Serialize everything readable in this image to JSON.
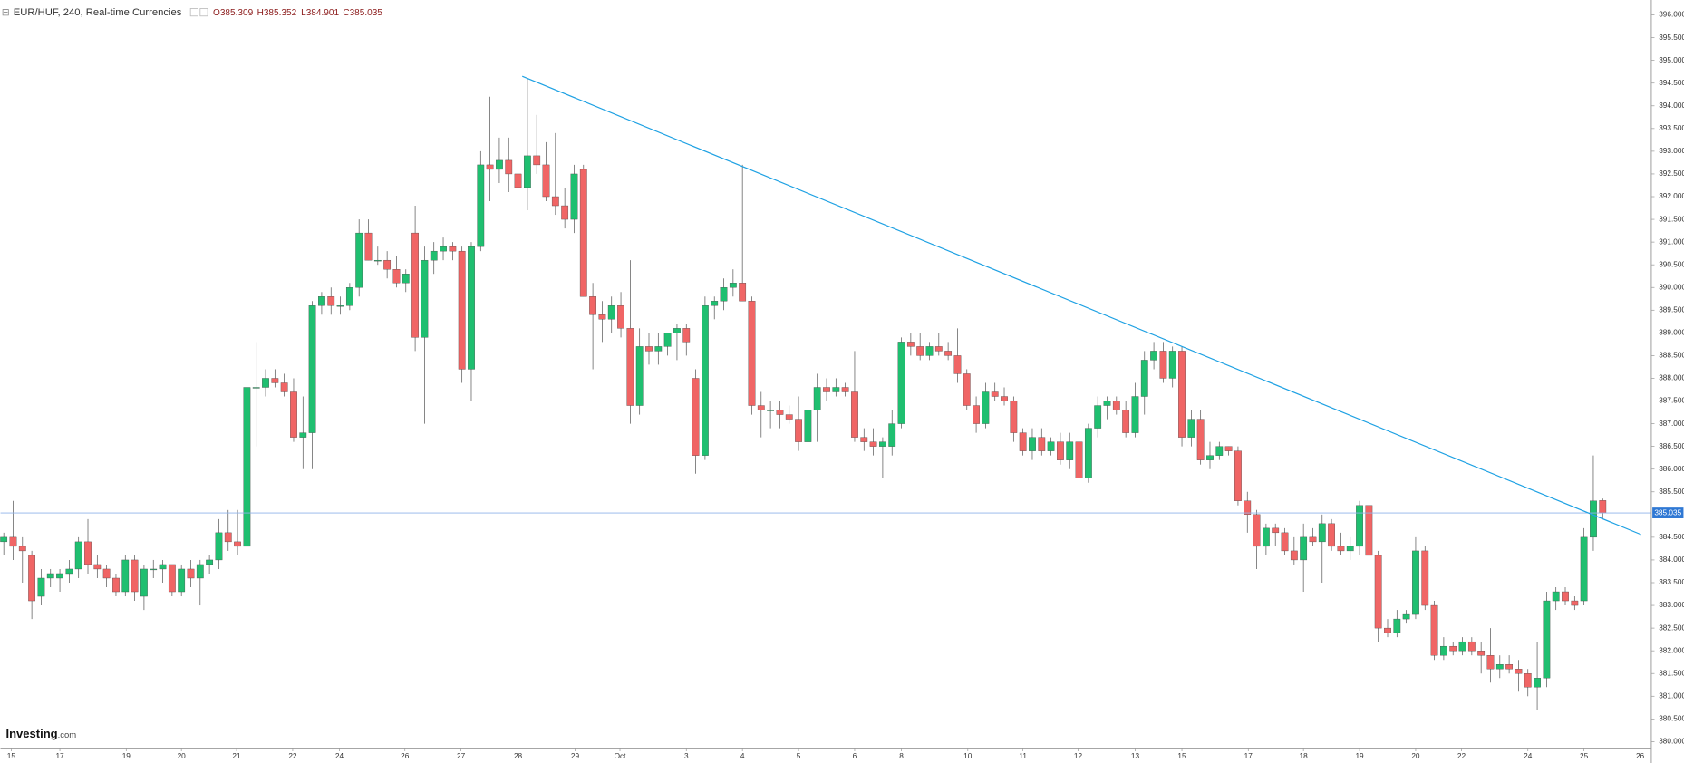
{
  "chart_data": {
    "type": "candlestick",
    "title": "EUR/HUF, 240, Real-time Currencies",
    "ohlc_labels": [
      "O385.309",
      "H385.352",
      "L384.901",
      "C385.035"
    ],
    "brand": "Investing",
    "brand_suffix": ".com",
    "up_color": "#1fbf70",
    "down_color": "#f06565",
    "open": [
      384.4,
      384.5,
      384.3,
      384.1,
      383.2,
      383.6,
      383.6,
      383.7,
      383.8,
      384.4,
      383.9,
      383.8,
      383.6,
      383.3,
      384.0,
      383.2,
      383.8,
      383.8,
      383.9,
      383.3,
      383.8,
      383.6,
      383.9,
      384.0,
      384.6,
      384.4,
      384.3,
      387.8,
      387.8,
      388.0,
      387.9,
      387.7,
      386.7,
      386.8,
      389.6,
      389.8,
      389.6,
      389.6,
      390.0,
      391.2,
      390.6,
      390.6,
      390.4,
      390.1,
      391.2,
      388.9,
      390.6,
      390.8,
      390.9,
      390.8,
      388.2,
      390.9,
      392.7,
      392.6,
      392.8,
      392.5,
      392.2,
      392.9,
      392.7,
      392.0,
      391.8,
      391.5,
      392.6,
      389.8,
      389.4,
      389.3,
      389.6,
      389.1,
      387.4,
      388.7,
      388.6,
      388.7,
      389.0,
      389.1,
      388.0,
      386.3,
      389.6,
      389.7,
      390.0,
      390.1,
      389.7,
      387.4,
      387.3,
      387.3,
      387.2,
      387.1,
      386.6,
      387.3,
      387.8,
      387.7,
      387.8,
      387.7,
      386.7,
      386.6,
      386.5,
      386.5,
      387.0,
      388.8,
      388.7,
      388.5,
      388.7,
      388.6,
      388.5,
      388.1,
      387.4,
      387.0,
      387.7,
      387.6,
      387.5,
      386.8,
      386.4,
      386.7,
      386.4,
      386.6,
      386.2,
      386.6,
      385.8,
      386.9,
      387.4,
      387.5,
      387.3,
      386.8,
      387.6,
      388.4,
      388.6,
      388.0,
      388.6,
      386.7,
      387.1,
      386.2,
      386.3,
      386.5,
      386.4,
      385.3,
      385.0,
      384.3,
      384.7,
      384.6,
      384.2,
      384.0,
      384.5,
      384.4,
      384.8,
      384.3,
      384.2,
      384.3,
      385.2,
      384.1,
      382.5,
      382.4,
      382.7,
      382.8,
      384.2,
      383.0,
      381.9,
      382.1,
      382.0,
      382.2,
      382.0,
      381.9,
      381.6,
      381.7,
      381.6,
      381.5,
      381.2,
      381.4,
      383.1,
      383.3,
      383.1,
      383.1,
      384.5,
      385.309
    ],
    "high": [
      384.6,
      385.3,
      384.5,
      384.2,
      383.8,
      383.8,
      383.8,
      384.0,
      384.5,
      384.9,
      384.1,
      383.9,
      383.7,
      384.1,
      384.1,
      383.9,
      384.0,
      384.0,
      383.9,
      383.9,
      384.0,
      384.0,
      384.1,
      384.9,
      385.1,
      385.1,
      388.0,
      388.8,
      388.2,
      388.2,
      388.1,
      388.0,
      387.6,
      389.7,
      389.9,
      390.0,
      389.8,
      390.1,
      391.5,
      391.5,
      390.9,
      390.8,
      390.7,
      390.4,
      391.8,
      390.9,
      391.0,
      391.1,
      391.0,
      390.9,
      391.0,
      393.0,
      394.2,
      393.3,
      393.3,
      393.5,
      394.6,
      393.8,
      393.2,
      393.4,
      392.2,
      392.7,
      392.7,
      390.1,
      389.7,
      389.8,
      389.9,
      390.6,
      389.1,
      389.0,
      389.0,
      389.0,
      389.2,
      389.2,
      388.2,
      389.8,
      389.8,
      390.2,
      390.4,
      392.7,
      389.8,
      387.7,
      387.5,
      387.5,
      387.4,
      387.6,
      387.7,
      388.1,
      388.0,
      388.0,
      387.9,
      388.6,
      386.9,
      386.9,
      386.7,
      387.3,
      388.9,
      389.0,
      389.0,
      388.8,
      389.0,
      388.8,
      389.1,
      388.2,
      387.6,
      387.9,
      387.9,
      387.8,
      387.6,
      386.9,
      386.9,
      386.9,
      386.7,
      386.8,
      386.8,
      386.8,
      387.0,
      387.6,
      387.6,
      387.6,
      387.5,
      387.9,
      388.6,
      388.8,
      388.8,
      388.7,
      388.7,
      387.3,
      387.3,
      386.6,
      386.6,
      386.5,
      386.5,
      385.5,
      385.1,
      384.8,
      384.8,
      384.7,
      384.5,
      384.8,
      384.7,
      385.0,
      384.9,
      384.6,
      384.5,
      385.3,
      385.3,
      384.2,
      382.7,
      382.9,
      382.9,
      384.5,
      384.3,
      383.1,
      382.3,
      382.2,
      382.3,
      382.3,
      382.2,
      382.5,
      381.9,
      381.9,
      381.8,
      381.6,
      382.2,
      383.3,
      383.4,
      383.4,
      383.2,
      384.7,
      386.3,
      385.352
    ],
    "low": [
      384.1,
      384.0,
      383.5,
      382.7,
      383.0,
      383.4,
      383.3,
      383.5,
      383.6,
      383.7,
      383.6,
      383.4,
      383.2,
      383.2,
      383.1,
      382.9,
      383.6,
      383.5,
      383.2,
      383.2,
      383.4,
      383.0,
      383.7,
      383.8,
      384.2,
      384.1,
      384.2,
      386.5,
      387.6,
      387.8,
      387.6,
      386.6,
      386.0,
      386.0,
      389.4,
      389.4,
      389.4,
      389.5,
      389.8,
      390.6,
      390.5,
      390.2,
      390.0,
      389.9,
      388.6,
      387.0,
      390.3,
      390.6,
      390.6,
      387.9,
      387.5,
      390.8,
      391.9,
      392.3,
      392.1,
      391.6,
      391.7,
      392.5,
      391.9,
      391.6,
      391.3,
      391.2,
      389.8,
      388.2,
      388.8,
      389.0,
      388.9,
      387.0,
      387.2,
      388.3,
      388.3,
      388.5,
      388.4,
      388.5,
      385.9,
      386.2,
      389.3,
      389.5,
      389.8,
      389.7,
      387.2,
      386.7,
      386.9,
      386.9,
      387.0,
      386.4,
      386.2,
      386.6,
      387.5,
      387.6,
      387.6,
      386.6,
      386.4,
      386.3,
      385.8,
      386.3,
      386.9,
      388.5,
      388.4,
      388.4,
      388.5,
      388.4,
      387.9,
      387.3,
      386.8,
      386.9,
      387.5,
      387.4,
      386.6,
      386.3,
      386.2,
      386.3,
      386.3,
      386.1,
      386.0,
      385.7,
      385.7,
      386.7,
      387.1,
      387.2,
      386.7,
      386.7,
      387.2,
      388.2,
      387.9,
      387.8,
      386.5,
      386.5,
      386.1,
      386.0,
      386.2,
      386.3,
      385.2,
      384.6,
      383.8,
      384.1,
      384.3,
      384.1,
      383.9,
      383.3,
      384.3,
      383.5,
      384.2,
      384.1,
      384.0,
      384.1,
      384.0,
      382.2,
      382.3,
      382.3,
      382.6,
      382.7,
      382.9,
      381.8,
      381.8,
      381.9,
      381.9,
      381.9,
      381.5,
      381.3,
      381.4,
      381.5,
      381.1,
      381.0,
      380.7,
      381.2,
      382.9,
      383.0,
      382.9,
      383.0,
      384.2,
      384.901
    ],
    "close": [
      384.5,
      384.3,
      384.2,
      383.1,
      383.6,
      383.7,
      383.7,
      383.8,
      384.4,
      383.9,
      383.8,
      383.6,
      383.3,
      384.0,
      383.3,
      383.8,
      383.8,
      383.9,
      383.3,
      383.8,
      383.6,
      383.9,
      384.0,
      384.6,
      384.4,
      384.3,
      387.8,
      387.8,
      388.0,
      387.9,
      387.7,
      386.7,
      386.8,
      389.6,
      389.8,
      389.6,
      389.6,
      390.0,
      391.2,
      390.6,
      390.6,
      390.4,
      390.1,
      390.3,
      388.9,
      390.6,
      390.8,
      390.9,
      390.8,
      388.2,
      390.9,
      392.7,
      392.6,
      392.8,
      392.5,
      392.2,
      392.9,
      392.7,
      392.0,
      391.8,
      391.5,
      392.5,
      389.8,
      389.4,
      389.3,
      389.6,
      389.1,
      387.4,
      388.7,
      388.6,
      388.7,
      389.0,
      389.1,
      388.8,
      386.3,
      389.6,
      389.7,
      390.0,
      390.1,
      389.7,
      387.4,
      387.3,
      387.3,
      387.2,
      387.1,
      386.6,
      387.3,
      387.8,
      387.7,
      387.8,
      387.7,
      386.7,
      386.6,
      386.5,
      386.6,
      387.0,
      388.8,
      388.7,
      388.5,
      388.7,
      388.6,
      388.5,
      388.1,
      387.4,
      387.0,
      387.7,
      387.6,
      387.5,
      386.8,
      386.4,
      386.7,
      386.4,
      386.6,
      386.2,
      386.6,
      385.8,
      386.9,
      387.4,
      387.5,
      387.3,
      386.8,
      387.6,
      388.4,
      388.6,
      388.0,
      388.6,
      386.7,
      387.1,
      386.2,
      386.3,
      386.5,
      386.4,
      385.3,
      385.0,
      384.3,
      384.7,
      384.6,
      384.2,
      384.0,
      384.5,
      384.4,
      384.8,
      384.3,
      384.2,
      384.3,
      385.2,
      384.1,
      382.5,
      382.4,
      382.7,
      382.8,
      384.2,
      383.0,
      381.9,
      382.1,
      382.0,
      382.2,
      382.0,
      381.9,
      381.6,
      381.7,
      381.6,
      381.5,
      381.2,
      381.4,
      383.1,
      383.3,
      383.1,
      383.0,
      384.5,
      385.3,
      385.035
    ],
    "xlim": [
      -0.35,
      176.2
    ],
    "ylim": [
      379.86,
      396.33
    ],
    "xticks": [
      {
        "value": 0.8,
        "label": "15"
      },
      {
        "value": 6.0,
        "label": "17"
      },
      {
        "value": 13.1,
        "label": "19"
      },
      {
        "value": 19.0,
        "label": "20"
      },
      {
        "value": 24.9,
        "label": "21"
      },
      {
        "value": 30.9,
        "label": "22"
      },
      {
        "value": 35.9,
        "label": "24"
      },
      {
        "value": 42.9,
        "label": "26"
      },
      {
        "value": 48.9,
        "label": "27"
      },
      {
        "value": 55.0,
        "label": "28"
      },
      {
        "value": 61.1,
        "label": "29"
      },
      {
        "value": 65.9,
        "label": "Oct"
      },
      {
        "value": 73.0,
        "label": "3"
      },
      {
        "value": 79.0,
        "label": "4"
      },
      {
        "value": 85.0,
        "label": "5"
      },
      {
        "value": 91.0,
        "label": "6"
      },
      {
        "value": 96.0,
        "label": "8"
      },
      {
        "value": 103.1,
        "label": "10"
      },
      {
        "value": 109.0,
        "label": "11"
      },
      {
        "value": 114.9,
        "label": "12"
      },
      {
        "value": 121.0,
        "label": "13"
      },
      {
        "value": 126.0,
        "label": "15"
      },
      {
        "value": 133.1,
        "label": "17"
      },
      {
        "value": 139.0,
        "label": "18"
      },
      {
        "value": 145.0,
        "label": "19"
      },
      {
        "value": 151.0,
        "label": "20"
      },
      {
        "value": 155.9,
        "label": "22"
      },
      {
        "value": 163.0,
        "label": "24"
      },
      {
        "value": 169.0,
        "label": "25"
      },
      {
        "value": 175.0,
        "label": "26"
      }
    ],
    "yticks": [
      {
        "value": 380,
        "label": "380.000"
      },
      {
        "value": 380.5,
        "label": "380.500"
      },
      {
        "value": 381,
        "label": "381.000"
      },
      {
        "value": 381.5,
        "label": "381.500"
      },
      {
        "value": 382,
        "label": "382.000"
      },
      {
        "value": 382.5,
        "label": "382.500"
      },
      {
        "value": 383,
        "label": "383.000"
      },
      {
        "value": 383.5,
        "label": "383.500"
      },
      {
        "value": 384,
        "label": "384.000"
      },
      {
        "value": 384.5,
        "label": "384.500"
      },
      {
        "value": 385.5,
        "label": "385.500"
      },
      {
        "value": 386,
        "label": "386.000"
      },
      {
        "value": 386.5,
        "label": "386.500"
      },
      {
        "value": 387,
        "label": "387.000"
      },
      {
        "value": 387.5,
        "label": "387.500"
      },
      {
        "value": 388,
        "label": "388.000"
      },
      {
        "value": 388.5,
        "label": "388.500"
      },
      {
        "value": 389,
        "label": "389.000"
      },
      {
        "value": 389.5,
        "label": "389.500"
      },
      {
        "value": 390,
        "label": "390.000"
      },
      {
        "value": 390.5,
        "label": "390.500"
      },
      {
        "value": 391,
        "label": "391.000"
      },
      {
        "value": 391.5,
        "label": "391.500"
      },
      {
        "value": 392,
        "label": "392.000"
      },
      {
        "value": 392.5,
        "label": "392.500"
      },
      {
        "value": 393,
        "label": "393.000"
      },
      {
        "value": 393.5,
        "label": "393.500"
      },
      {
        "value": 394,
        "label": "394.000"
      },
      {
        "value": 394.5,
        "label": "394.500"
      },
      {
        "value": 395,
        "label": "395.000"
      },
      {
        "value": 395.5,
        "label": "395.500"
      },
      {
        "value": 396,
        "label": "396.000"
      }
    ],
    "trendline": {
      "x": [
        55.45,
        175.1
      ],
      "y": [
        394.65,
        384.56
      ],
      "color": "#1ea1e3"
    },
    "price_line_color": "#8fb3ea",
    "price_badge_color": "#2f78d4"
  }
}
